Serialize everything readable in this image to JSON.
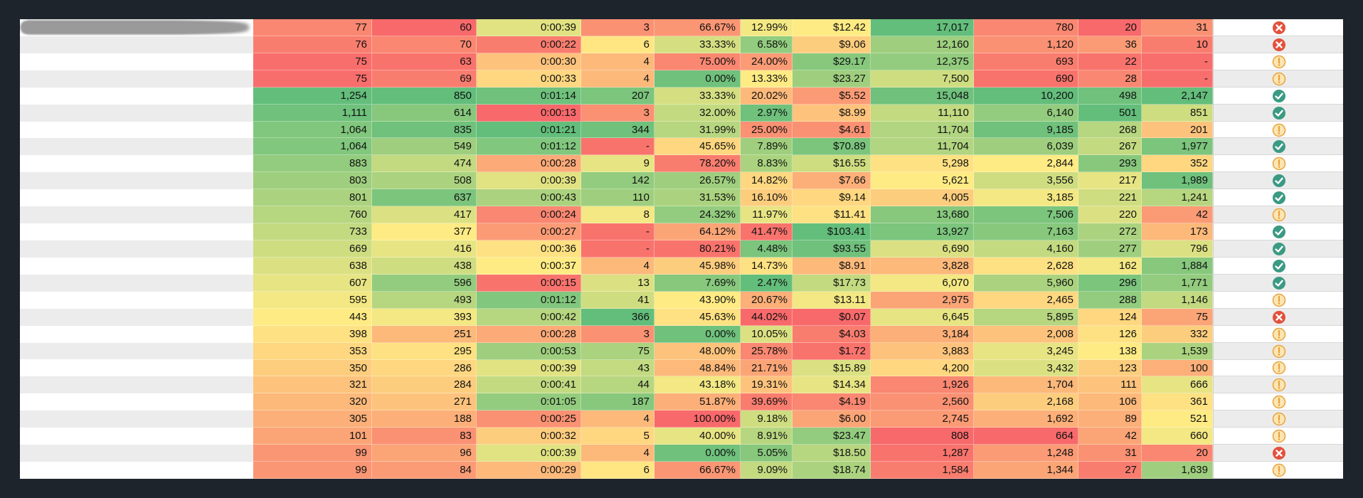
{
  "table": {
    "color_scale": {
      "low": "#f8696b",
      "mid": "#ffeb84",
      "high": "#63be7b"
    },
    "column_scales": [
      "max-green",
      "max-green",
      "max-green",
      "max-green",
      "min-green",
      "min-green",
      "max-green",
      "max-green",
      "max-green",
      "max-green",
      "max-green"
    ],
    "icon_colors": {
      "cross": "#e2513d",
      "exclamation": "#e9a23b",
      "check": "#3b9a83"
    },
    "rows": [
      {
        "cells": [
          "77",
          "60",
          "0:00:39",
          "3",
          "66.67%",
          "12.99%",
          "$12.42",
          "17,017",
          "780",
          "20",
          "31"
        ],
        "icon": "cross"
      },
      {
        "cells": [
          "76",
          "70",
          "0:00:22",
          "6",
          "33.33%",
          "6.58%",
          "$9.06",
          "12,160",
          "1,120",
          "36",
          "10"
        ],
        "icon": "cross"
      },
      {
        "cells": [
          "75",
          "63",
          "0:00:30",
          "4",
          "75.00%",
          "24.00%",
          "$29.17",
          "12,375",
          "693",
          "22",
          "-"
        ],
        "icon": "exclamation"
      },
      {
        "cells": [
          "75",
          "69",
          "0:00:33",
          "4",
          "0.00%",
          "13.33%",
          "$23.27",
          "7,500",
          "690",
          "28",
          "-"
        ],
        "icon": "exclamation"
      },
      {
        "cells": [
          "1,254",
          "850",
          "0:01:14",
          "207",
          "33.33%",
          "20.02%",
          "$5.52",
          "15,048",
          "10,200",
          "498",
          "2,147"
        ],
        "icon": "check"
      },
      {
        "cells": [
          "1,111",
          "614",
          "0:00:13",
          "3",
          "32.00%",
          "2.97%",
          "$8.99",
          "11,110",
          "6,140",
          "501",
          "851"
        ],
        "icon": "check"
      },
      {
        "cells": [
          "1,064",
          "835",
          "0:01:21",
          "344",
          "31.99%",
          "25.00%",
          "$4.61",
          "11,704",
          "9,185",
          "268",
          "201"
        ],
        "icon": "exclamation"
      },
      {
        "cells": [
          "1,064",
          "549",
          "0:01:12",
          "-",
          "45.65%",
          "7.89%",
          "$70.89",
          "11,704",
          "6,039",
          "267",
          "1,977"
        ],
        "icon": "check"
      },
      {
        "cells": [
          "883",
          "474",
          "0:00:28",
          "9",
          "78.20%",
          "8.83%",
          "$16.55",
          "5,298",
          "2,844",
          "293",
          "352"
        ],
        "icon": "exclamation"
      },
      {
        "cells": [
          "803",
          "508",
          "0:00:39",
          "142",
          "26.57%",
          "14.82%",
          "$7.66",
          "5,621",
          "3,556",
          "217",
          "1,989"
        ],
        "icon": "check"
      },
      {
        "cells": [
          "801",
          "637",
          "0:00:43",
          "110",
          "31.53%",
          "16.10%",
          "$9.14",
          "4,005",
          "3,185",
          "221",
          "1,241"
        ],
        "icon": "check"
      },
      {
        "cells": [
          "760",
          "417",
          "0:00:24",
          "8",
          "24.32%",
          "11.97%",
          "$11.41",
          "13,680",
          "7,506",
          "220",
          "42"
        ],
        "icon": "exclamation"
      },
      {
        "cells": [
          "733",
          "377",
          "0:00:27",
          "-",
          "64.12%",
          "41.47%",
          "$103.41",
          "13,927",
          "7,163",
          "272",
          "173"
        ],
        "icon": "check"
      },
      {
        "cells": [
          "669",
          "416",
          "0:00:36",
          "-",
          "80.21%",
          "4.48%",
          "$93.55",
          "6,690",
          "4,160",
          "277",
          "796"
        ],
        "icon": "check"
      },
      {
        "cells": [
          "638",
          "438",
          "0:00:37",
          "4",
          "45.98%",
          "14.73%",
          "$8.91",
          "3,828",
          "2,628",
          "162",
          "1,884"
        ],
        "icon": "check"
      },
      {
        "cells": [
          "607",
          "596",
          "0:00:15",
          "13",
          "7.69%",
          "2.47%",
          "$17.73",
          "6,070",
          "5,960",
          "296",
          "1,771"
        ],
        "icon": "check"
      },
      {
        "cells": [
          "595",
          "493",
          "0:01:12",
          "41",
          "43.90%",
          "20.67%",
          "$13.11",
          "2,975",
          "2,465",
          "288",
          "1,146"
        ],
        "icon": "exclamation"
      },
      {
        "cells": [
          "443",
          "393",
          "0:00:42",
          "366",
          "45.63%",
          "44.02%",
          "$0.07",
          "6,645",
          "5,895",
          "124",
          "75"
        ],
        "icon": "cross"
      },
      {
        "cells": [
          "398",
          "251",
          "0:00:28",
          "3",
          "0.00%",
          "10.05%",
          "$4.03",
          "3,184",
          "2,008",
          "126",
          "332"
        ],
        "icon": "exclamation"
      },
      {
        "cells": [
          "353",
          "295",
          "0:00:53",
          "75",
          "48.00%",
          "25.78%",
          "$1.72",
          "3,883",
          "3,245",
          "138",
          "1,539"
        ],
        "icon": "exclamation"
      },
      {
        "cells": [
          "350",
          "286",
          "0:00:39",
          "43",
          "48.84%",
          "21.71%",
          "$15.89",
          "4,200",
          "3,432",
          "123",
          "100"
        ],
        "icon": "exclamation"
      },
      {
        "cells": [
          "321",
          "284",
          "0:00:41",
          "44",
          "43.18%",
          "19.31%",
          "$14.34",
          "1,926",
          "1,704",
          "111",
          "666"
        ],
        "icon": "exclamation"
      },
      {
        "cells": [
          "320",
          "271",
          "0:01:05",
          "187",
          "51.87%",
          "39.69%",
          "$4.19",
          "2,560",
          "2,168",
          "106",
          "361"
        ],
        "icon": "exclamation"
      },
      {
        "cells": [
          "305",
          "188",
          "0:00:25",
          "4",
          "100.00%",
          "9.18%",
          "$6.00",
          "2,745",
          "1,692",
          "89",
          "521"
        ],
        "icon": "exclamation"
      },
      {
        "cells": [
          "101",
          "83",
          "0:00:32",
          "5",
          "40.00%",
          "8.91%",
          "$23.47",
          "808",
          "664",
          "42",
          "660"
        ],
        "icon": "exclamation"
      },
      {
        "cells": [
          "99",
          "96",
          "0:00:39",
          "4",
          "0.00%",
          "5.05%",
          "$18.50",
          "1,287",
          "1,248",
          "31",
          "20"
        ],
        "icon": "cross"
      },
      {
        "cells": [
          "99",
          "84",
          "0:00:29",
          "6",
          "66.67%",
          "9.09%",
          "$18.74",
          "1,584",
          "1,344",
          "27",
          "1,639"
        ],
        "icon": "exclamation"
      }
    ]
  }
}
